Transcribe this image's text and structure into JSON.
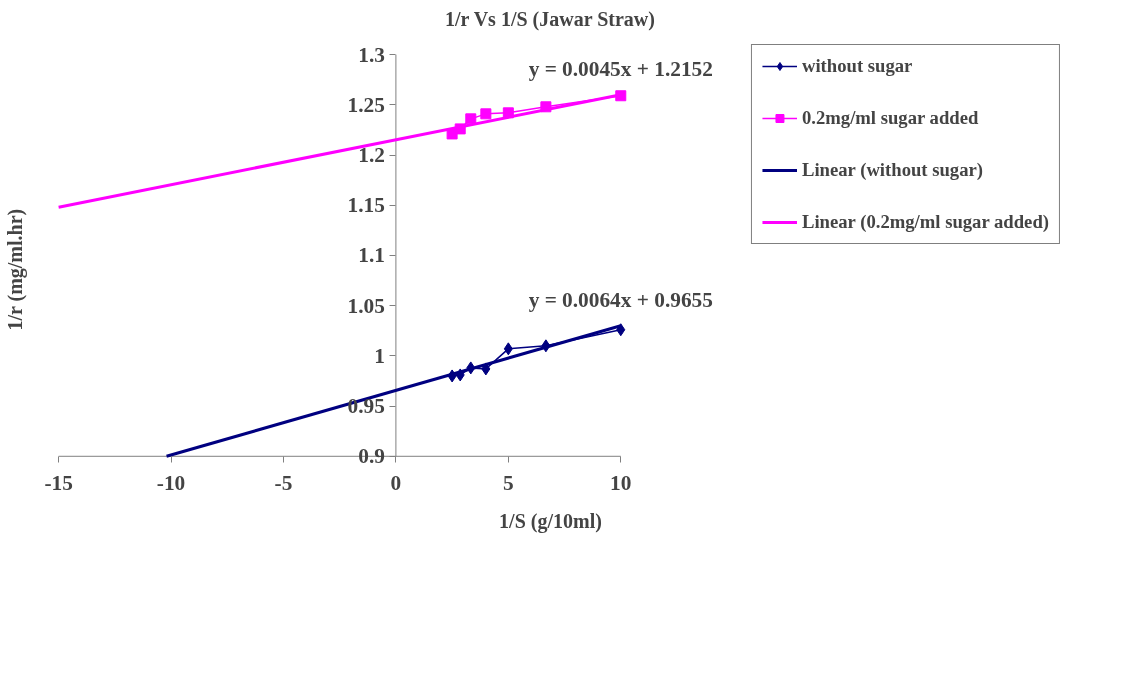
{
  "chart_data": {
    "type": "line",
    "title": "1/r Vs 1/S (Jawar Straw)",
    "xlabel": "1/S (g/10ml)",
    "ylabel": "1/r (mg/ml.hr)",
    "xlim": [
      -15,
      10
    ],
    "xticks": [
      -15,
      -10,
      -5,
      0,
      5,
      10
    ],
    "ylim": [
      0.9,
      1.3
    ],
    "yticks": [
      0.9,
      0.95,
      1,
      1.05,
      1.1,
      1.15,
      1.2,
      1.25,
      1.3
    ],
    "grid": false,
    "legend": "right",
    "series": [
      {
        "name": "without sugar",
        "color": "#000080",
        "marker": "diamond",
        "x": [
          2.5,
          2.86,
          3.33,
          4,
          5,
          6.67,
          10
        ],
        "values": [
          0.98,
          0.981,
          0.988,
          0.987,
          1.007,
          1.01,
          1.026
        ]
      },
      {
        "name": "0.2mg/ml sugar added",
        "color": "#ff00ff",
        "marker": "square",
        "x": [
          2.5,
          2.86,
          3.33,
          4,
          5,
          6.67,
          10
        ],
        "values": [
          1.221,
          1.226,
          1.236,
          1.241,
          1.242,
          1.248,
          1.259
        ]
      },
      {
        "name": "Linear (without sugar)",
        "color": "#000080",
        "marker": "none",
        "x": [
          -10.2,
          10
        ],
        "values": [
          0.9,
          1.03
        ]
      },
      {
        "name": "Linear (0.2mg/ml sugar added)",
        "color": "#ff00ff",
        "marker": "none",
        "x": [
          -15,
          10
        ],
        "values": [
          1.148,
          1.26
        ]
      }
    ],
    "annotations": [
      {
        "text": "y = 0.0045x + 1.2152",
        "x": 10,
        "y": 1.26
      },
      {
        "text": "y = 0.0064x + 0.9655",
        "x": 10,
        "y": 1.03
      }
    ]
  }
}
